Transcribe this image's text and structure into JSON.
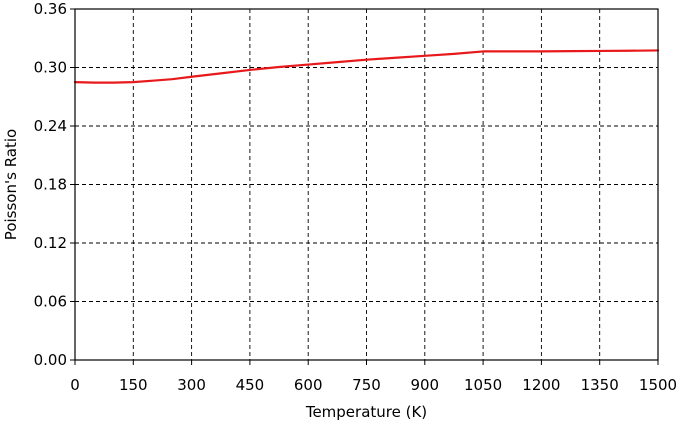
{
  "chart_data": {
    "type": "line",
    "title": "",
    "xlabel": "Temperature (K)",
    "ylabel": "Poisson's Ratio",
    "xlim": [
      0,
      1500
    ],
    "ylim": [
      0,
      0.36
    ],
    "x_ticks": [
      "0",
      "150",
      "300",
      "450",
      "600",
      "750",
      "900",
      "1050",
      "1200",
      "1350",
      "1500"
    ],
    "y_ticks": [
      "0.00",
      "0.06",
      "0.12",
      "0.18",
      "0.24",
      "0.30",
      "0.36"
    ],
    "grid": true,
    "series": [
      {
        "color": "#e8191b",
        "x": [
          0,
          50,
          100,
          150,
          200,
          250,
          300,
          375,
          450,
          525,
          600,
          675,
          750,
          825,
          900,
          975,
          1050,
          1125,
          1200,
          1275,
          1350,
          1425,
          1500
        ],
        "y": [
          0.285,
          0.2845,
          0.2845,
          0.285,
          0.2865,
          0.288,
          0.2905,
          0.294,
          0.2975,
          0.3005,
          0.303,
          0.3055,
          0.308,
          0.31,
          0.312,
          0.314,
          0.3165,
          0.3165,
          0.3165,
          0.3168,
          0.317,
          0.3172,
          0.3175
        ]
      }
    ]
  }
}
